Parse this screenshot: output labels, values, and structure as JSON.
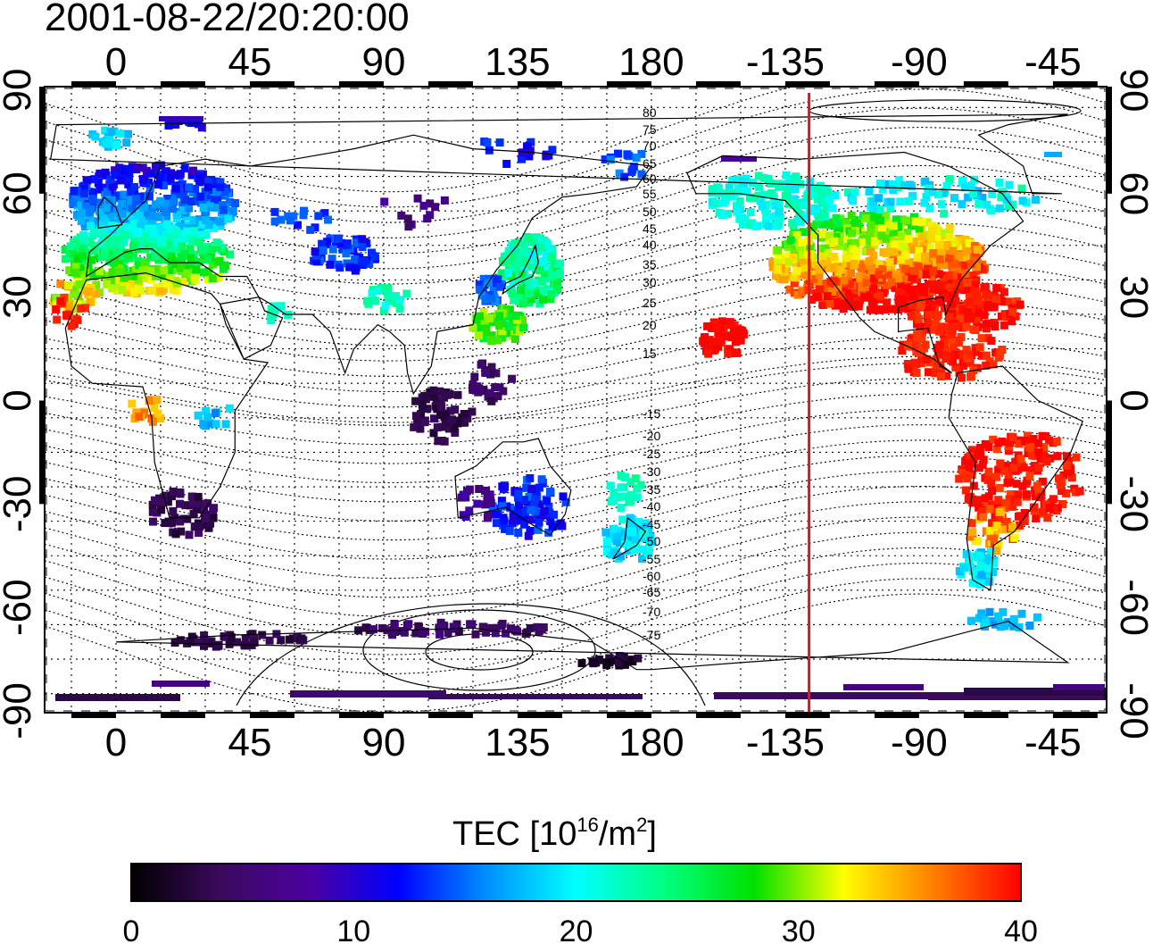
{
  "timestamp": "2001-08-22/20:20:00",
  "map": {
    "projection": "equirectangular",
    "lon_ticks": [
      "0",
      "45",
      "90",
      "135",
      "180",
      "-135",
      "-90",
      "-45"
    ],
    "lat_ticks": [
      "90",
      "60",
      "30",
      "0",
      "-30",
      "-60",
      "-90"
    ],
    "contour_labels": [
      "80",
      "75",
      "70",
      "65",
      "60",
      "55",
      "50",
      "45",
      "40",
      "35",
      "30",
      "25",
      "20",
      "15",
      "-15",
      "-20",
      "-25",
      "-30",
      "-35",
      "-40",
      "-45",
      "-50",
      "-55",
      "-60",
      "-65",
      "-70",
      "-75"
    ],
    "marker_line_lon": -127,
    "marker_line_color": "#e8141c",
    "grid": "dotted"
  },
  "colorbar": {
    "title_prefix": "TEC  [10",
    "title_exp1": "16",
    "title_mid": "/m",
    "title_exp2": "2",
    "title_suffix": "]",
    "tick_labels": [
      "0",
      "10",
      "20",
      "30",
      "40"
    ],
    "range": [
      0,
      40
    ],
    "colors": [
      "#000000",
      "#3a0a5c",
      "#4b00a0",
      "#0000ff",
      "#0090ff",
      "#00ffff",
      "#00ff80",
      "#00e000",
      "#ffff00",
      "#ff8000",
      "#ff0000"
    ]
  }
}
